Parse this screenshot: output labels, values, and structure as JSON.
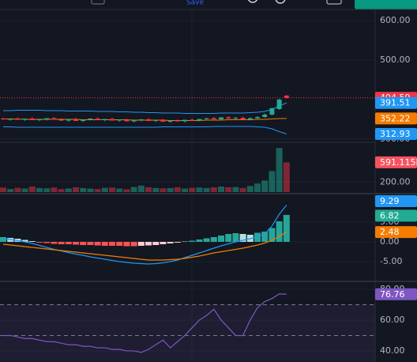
{
  "ui": {
    "save": "Save"
  },
  "chart_data": [
    {
      "type": "candlestick",
      "ylim": [
        292,
        628
      ],
      "yticks": [
        {
          "value": 600,
          "label": "600.00"
        },
        {
          "value": 500,
          "label": "500.00"
        },
        {
          "value": 300,
          "label": "300.00"
        }
      ],
      "up_color": "#22ab94",
      "down_color": "#f23645",
      "candles": [
        [
          352,
          354,
          348,
          350
        ],
        [
          350,
          353,
          347,
          351
        ],
        [
          351,
          355,
          349,
          349
        ],
        [
          349,
          352,
          346,
          352
        ],
        [
          352,
          356,
          350,
          348
        ],
        [
          348,
          351,
          345,
          350
        ],
        [
          350,
          353,
          347,
          353
        ],
        [
          353,
          356,
          350,
          349
        ],
        [
          349,
          352,
          346,
          347
        ],
        [
          347,
          351,
          344,
          350
        ],
        [
          350,
          354,
          348,
          346
        ],
        [
          346,
          350,
          343,
          349
        ],
        [
          349,
          353,
          347,
          352
        ],
        [
          352,
          355,
          349,
          348
        ],
        [
          348,
          351,
          345,
          351
        ],
        [
          351,
          354,
          348,
          347
        ],
        [
          347,
          350,
          344,
          349
        ],
        [
          349,
          352,
          346,
          345
        ],
        [
          345,
          349,
          342,
          348
        ],
        [
          348,
          351,
          345,
          350
        ],
        [
          350,
          353,
          347,
          346
        ],
        [
          346,
          349,
          343,
          348
        ],
        [
          348,
          351,
          345,
          344
        ],
        [
          344,
          348,
          341,
          347
        ],
        [
          347,
          350,
          344,
          345
        ],
        [
          345,
          349,
          342,
          349
        ],
        [
          349,
          352,
          346,
          347
        ],
        [
          347,
          351,
          345,
          351
        ],
        [
          351,
          354,
          348,
          353
        ],
        [
          353,
          356,
          350,
          350
        ],
        [
          350,
          354,
          348,
          355
        ],
        [
          355,
          358,
          352,
          352
        ],
        [
          352,
          356,
          350,
          354
        ],
        [
          354,
          357,
          351,
          349
        ],
        [
          349,
          355,
          347,
          353
        ],
        [
          353,
          358,
          351,
          356
        ],
        [
          356,
          365,
          354,
          362
        ],
        [
          362,
          380,
          360,
          378
        ],
        [
          376,
          402,
          374,
          400
        ],
        [
          410,
          412,
          402,
          404.59
        ]
      ],
      "bands": [
        {
          "color": "#2196f3",
          "values": [
            372,
            372,
            373,
            373,
            373,
            373,
            372,
            372,
            372,
            371,
            371,
            371,
            371,
            370,
            370,
            370,
            369,
            369,
            368,
            368,
            367,
            367,
            366,
            366,
            366,
            365,
            365,
            365,
            365,
            365,
            366,
            366,
            366,
            366,
            367,
            368,
            370,
            375,
            384,
            391.51
          ]
        },
        {
          "color": "#f57c00",
          "values": [
            351,
            351,
            351,
            350,
            350,
            350,
            350,
            350,
            350,
            350,
            350,
            349,
            349,
            349,
            349,
            349,
            349,
            349,
            348,
            348,
            348,
            348,
            348,
            347,
            347,
            347,
            347,
            347,
            348,
            348,
            348,
            349,
            349,
            349,
            349,
            350,
            350,
            351,
            352,
            352.22
          ]
        },
        {
          "color": "#2196f3",
          "values": [
            331,
            331,
            330,
            330,
            330,
            330,
            330,
            330,
            330,
            330,
            330,
            330,
            330,
            330,
            330,
            330,
            330,
            330,
            330,
            330,
            330,
            330,
            331,
            331,
            331,
            331,
            331,
            331,
            331,
            332,
            332,
            332,
            332,
            332,
            332,
            331,
            330,
            326,
            319,
            312.93
          ]
        }
      ]
    },
    {
      "type": "bar",
      "ylim": [
        0,
        975
      ],
      "yticks": [
        {
          "value": 200,
          "label": "200.00"
        }
      ],
      "values": [
        90,
        60,
        85,
        70,
        110,
        80,
        75,
        90,
        60,
        70,
        95,
        80,
        70,
        60,
        85,
        90,
        70,
        55,
        100,
        130,
        95,
        80,
        75,
        80,
        95,
        70,
        85,
        90,
        80,
        95,
        110,
        95,
        100,
        80,
        120,
        170,
        230,
        420,
        877,
        591.115
      ],
      "value_labels": [
        null,
        null,
        null,
        null,
        null,
        null,
        null,
        null,
        null,
        null,
        null,
        null,
        null,
        null,
        null,
        null,
        null,
        null,
        null,
        null,
        null,
        null,
        null,
        null,
        null,
        null,
        null,
        null,
        null,
        null,
        null,
        null,
        null,
        null,
        null,
        null,
        null,
        null,
        null,
        "591.115K"
      ],
      "pill_color": "#f7525f"
    },
    {
      "type": "macd",
      "ylim": [
        -9.8,
        11.8
      ],
      "yticks": [
        {
          "value": 5,
          "label": "5.00"
        },
        {
          "value": 0,
          "label": "0.00"
        },
        {
          "value": -5,
          "label": "-5.00"
        }
      ],
      "histogram": {
        "color": "#22ab94",
        "values": [
          1.2,
          1.0,
          0.8,
          0.5,
          0.2,
          -0.2,
          -0.3,
          -0.5,
          -0.6,
          -0.6,
          -0.7,
          -0.8,
          -0.8,
          -0.9,
          -1,
          -1,
          -1,
          -1.1,
          -1.1,
          -1,
          -0.9,
          -0.8,
          -0.6,
          -0.4,
          -0.2,
          0.1,
          0.3,
          0.6,
          0.9,
          1.2,
          1.6,
          2.0,
          2.2,
          2.0,
          1.8,
          2.3,
          2.6,
          3.5,
          5.2,
          6.82
        ]
      },
      "series": [
        {
          "color": "#2196f3",
          "values": [
            0.8,
            0.6,
            0.3,
            0,
            -0.4,
            -0.9,
            -1.4,
            -1.9,
            -2.3,
            -2.7,
            -3.1,
            -3.4,
            -3.8,
            -4.1,
            -4.4,
            -4.7,
            -5.0,
            -5.2,
            -5.4,
            -5.5,
            -5.6,
            -5.5,
            -5.3,
            -5.0,
            -4.6,
            -4.0,
            -3.4,
            -2.8,
            -2.2,
            -1.6,
            -1.0,
            -0.5,
            0,
            0.4,
            0.8,
            1.3,
            2.0,
            4.0,
            7.0,
            9.29
          ]
        },
        {
          "color": "#f57c00",
          "values": [
            -0.6,
            -0.8,
            -1,
            -1.2,
            -1.4,
            -1.6,
            -1.8,
            -2.0,
            -2.2,
            -2.4,
            -2.6,
            -2.8,
            -3,
            -3.2,
            -3.4,
            -3.6,
            -3.8,
            -4,
            -4.2,
            -4.4,
            -4.6,
            -4.6,
            -4.6,
            -4.5,
            -4.4,
            -4.2,
            -3.9,
            -3.6,
            -3.2,
            -2.8,
            -2.5,
            -2.2,
            -1.9,
            -1.6,
            -1.2,
            -0.8,
            -0.3,
            0.4,
            1.4,
            2.48
          ]
        }
      ]
    },
    {
      "type": "line",
      "ylim": [
        32.8,
        84.6
      ],
      "yticks": [
        {
          "value": 80,
          "label": "80.00"
        },
        {
          "value": 60,
          "label": "60.00"
        },
        {
          "value": 40,
          "label": "40.00"
        }
      ],
      "levels": [
        70,
        50
      ],
      "series": [
        {
          "color": "#7e57c2",
          "values": [
            50,
            50,
            49,
            48,
            48,
            47,
            46,
            46,
            45,
            44,
            44,
            43,
            43,
            42,
            42,
            41,
            41,
            40,
            40,
            39,
            41,
            44,
            47,
            42,
            46,
            50,
            55,
            60,
            63,
            67,
            60,
            55,
            50,
            50,
            60,
            68,
            72,
            74,
            77,
            76.76
          ]
        }
      ]
    }
  ]
}
